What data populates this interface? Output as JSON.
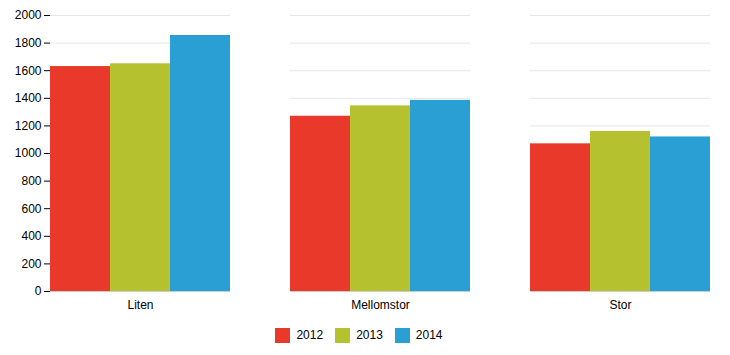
{
  "chart_data": {
    "type": "bar",
    "categories": [
      "Liten",
      "Mellomstor",
      "Stor"
    ],
    "series": [
      {
        "name": "2012",
        "color": "#e8392a",
        "values": [
          1630,
          1270,
          1070
        ]
      },
      {
        "name": "2013",
        "color": "#b5c12e",
        "values": [
          1650,
          1345,
          1160
        ]
      },
      {
        "name": "2014",
        "color": "#2a9fd4",
        "values": [
          1855,
          1385,
          1120
        ]
      }
    ],
    "ylim": [
      0,
      2000
    ],
    "yticks": [
      0,
      200,
      400,
      600,
      800,
      1000,
      1200,
      1400,
      1600,
      1800,
      2000
    ],
    "grid": true,
    "legend": "bottom"
  }
}
